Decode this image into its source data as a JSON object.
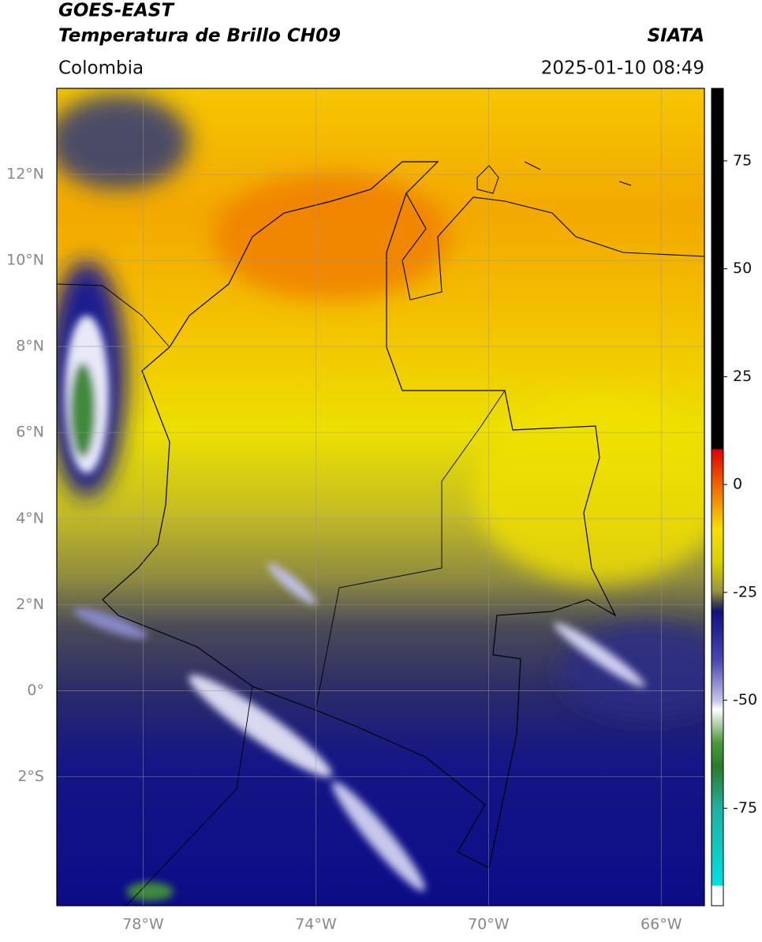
{
  "chart_data": {
    "type": "map",
    "title": "GOES-EAST",
    "subtitle": "Temperatura de Brillo CH09",
    "region": "Colombia",
    "source": "SIATA",
    "timestamp": "2025-01-10 08:49",
    "xlim": [
      -80,
      -65
    ],
    "ylim": [
      -5,
      14
    ],
    "xticks": [
      {
        "value": -78,
        "label": "78°W"
      },
      {
        "value": -74,
        "label": "74°W"
      },
      {
        "value": -70,
        "label": "70°W"
      },
      {
        "value": -66,
        "label": "66°W"
      }
    ],
    "yticks": [
      {
        "value": 12,
        "label": "12°N"
      },
      {
        "value": 10,
        "label": "10°N"
      },
      {
        "value": 8,
        "label": "8°N"
      },
      {
        "value": 6,
        "label": "6°N"
      },
      {
        "value": 4,
        "label": "4°N"
      },
      {
        "value": 2,
        "label": "2°N"
      },
      {
        "value": 0,
        "label": "0°"
      },
      {
        "value": -2,
        "label": "2°S"
      }
    ],
    "grid": true,
    "colorbar": {
      "lim": [
        -97.6,
        91.8
      ],
      "ticks": [
        75,
        50,
        25,
        0,
        -25,
        -50,
        -75
      ]
    }
  }
}
